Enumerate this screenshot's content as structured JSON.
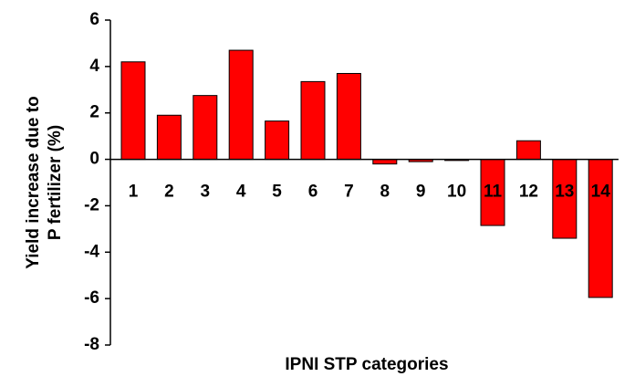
{
  "chart_data": {
    "type": "bar",
    "x_label": "IPNI STP categories",
    "y_label": [
      "Yield increase due to",
      "P fertilizer (%)"
    ],
    "categories": [
      "1",
      "2",
      "3",
      "4",
      "5",
      "6",
      "7",
      "8",
      "9",
      "10",
      "11",
      "12",
      "13",
      "14"
    ],
    "values": [
      4.2,
      1.9,
      2.75,
      4.7,
      1.65,
      3.35,
      3.7,
      -0.2,
      -0.1,
      -0.05,
      -2.85,
      0.8,
      -3.4,
      -5.95
    ],
    "color": "#ff0000",
    "ylim": [
      -8,
      6
    ],
    "yticks": [
      -8,
      -6,
      -4,
      -2,
      0,
      2,
      4,
      6
    ],
    "grid": false
  }
}
